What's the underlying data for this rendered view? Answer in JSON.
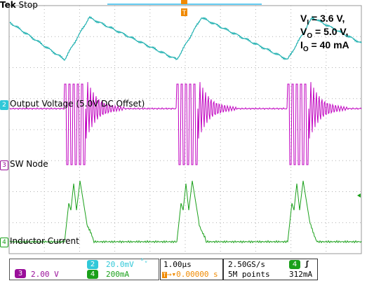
{
  "header": {
    "brand": "Tek",
    "run_state": "Stop"
  },
  "conditions": [
    {
      "base": "V",
      "sub": "I",
      "value": " = 3.6 V,"
    },
    {
      "base": "V",
      "sub": "O",
      "value": " = 5.0 V,"
    },
    {
      "base": "I",
      "sub": "O",
      "value": " = 40 mA"
    }
  ],
  "channels": [
    {
      "id": "2",
      "label": "Output Voltage (5.0V DC Offset)",
      "color": "#e8a0ff"
    },
    {
      "id": "3",
      "label": "SW Node",
      "color": "#b000b0"
    },
    {
      "id": "4",
      "label": "Inductor Current",
      "color": "#1aa01a"
    }
  ],
  "trigger_marker": "T",
  "readout": {
    "ch3": {
      "num": "3",
      "scale": "2.00 V"
    },
    "ch2": {
      "num": "2",
      "scale": "20.0mV",
      "bw": "ᵇᵥ"
    },
    "ch4": {
      "num": "4",
      "scale": "200mA"
    },
    "timebase": "1.00µs",
    "trigger_pos": "0.00000 s",
    "sample_rate": "2.50GS/s",
    "record_length": "5M points",
    "trig_ch": "4",
    "trig_slope": "ʃ",
    "trig_level": "312mA"
  },
  "colors": {
    "ch1_trace": "#1fb0b0",
    "ch2_badge": "#30c8d8",
    "ch3_badge": "#9a0f9a",
    "ch4_badge": "#1aa01a",
    "trigger": "#f08a00"
  }
}
